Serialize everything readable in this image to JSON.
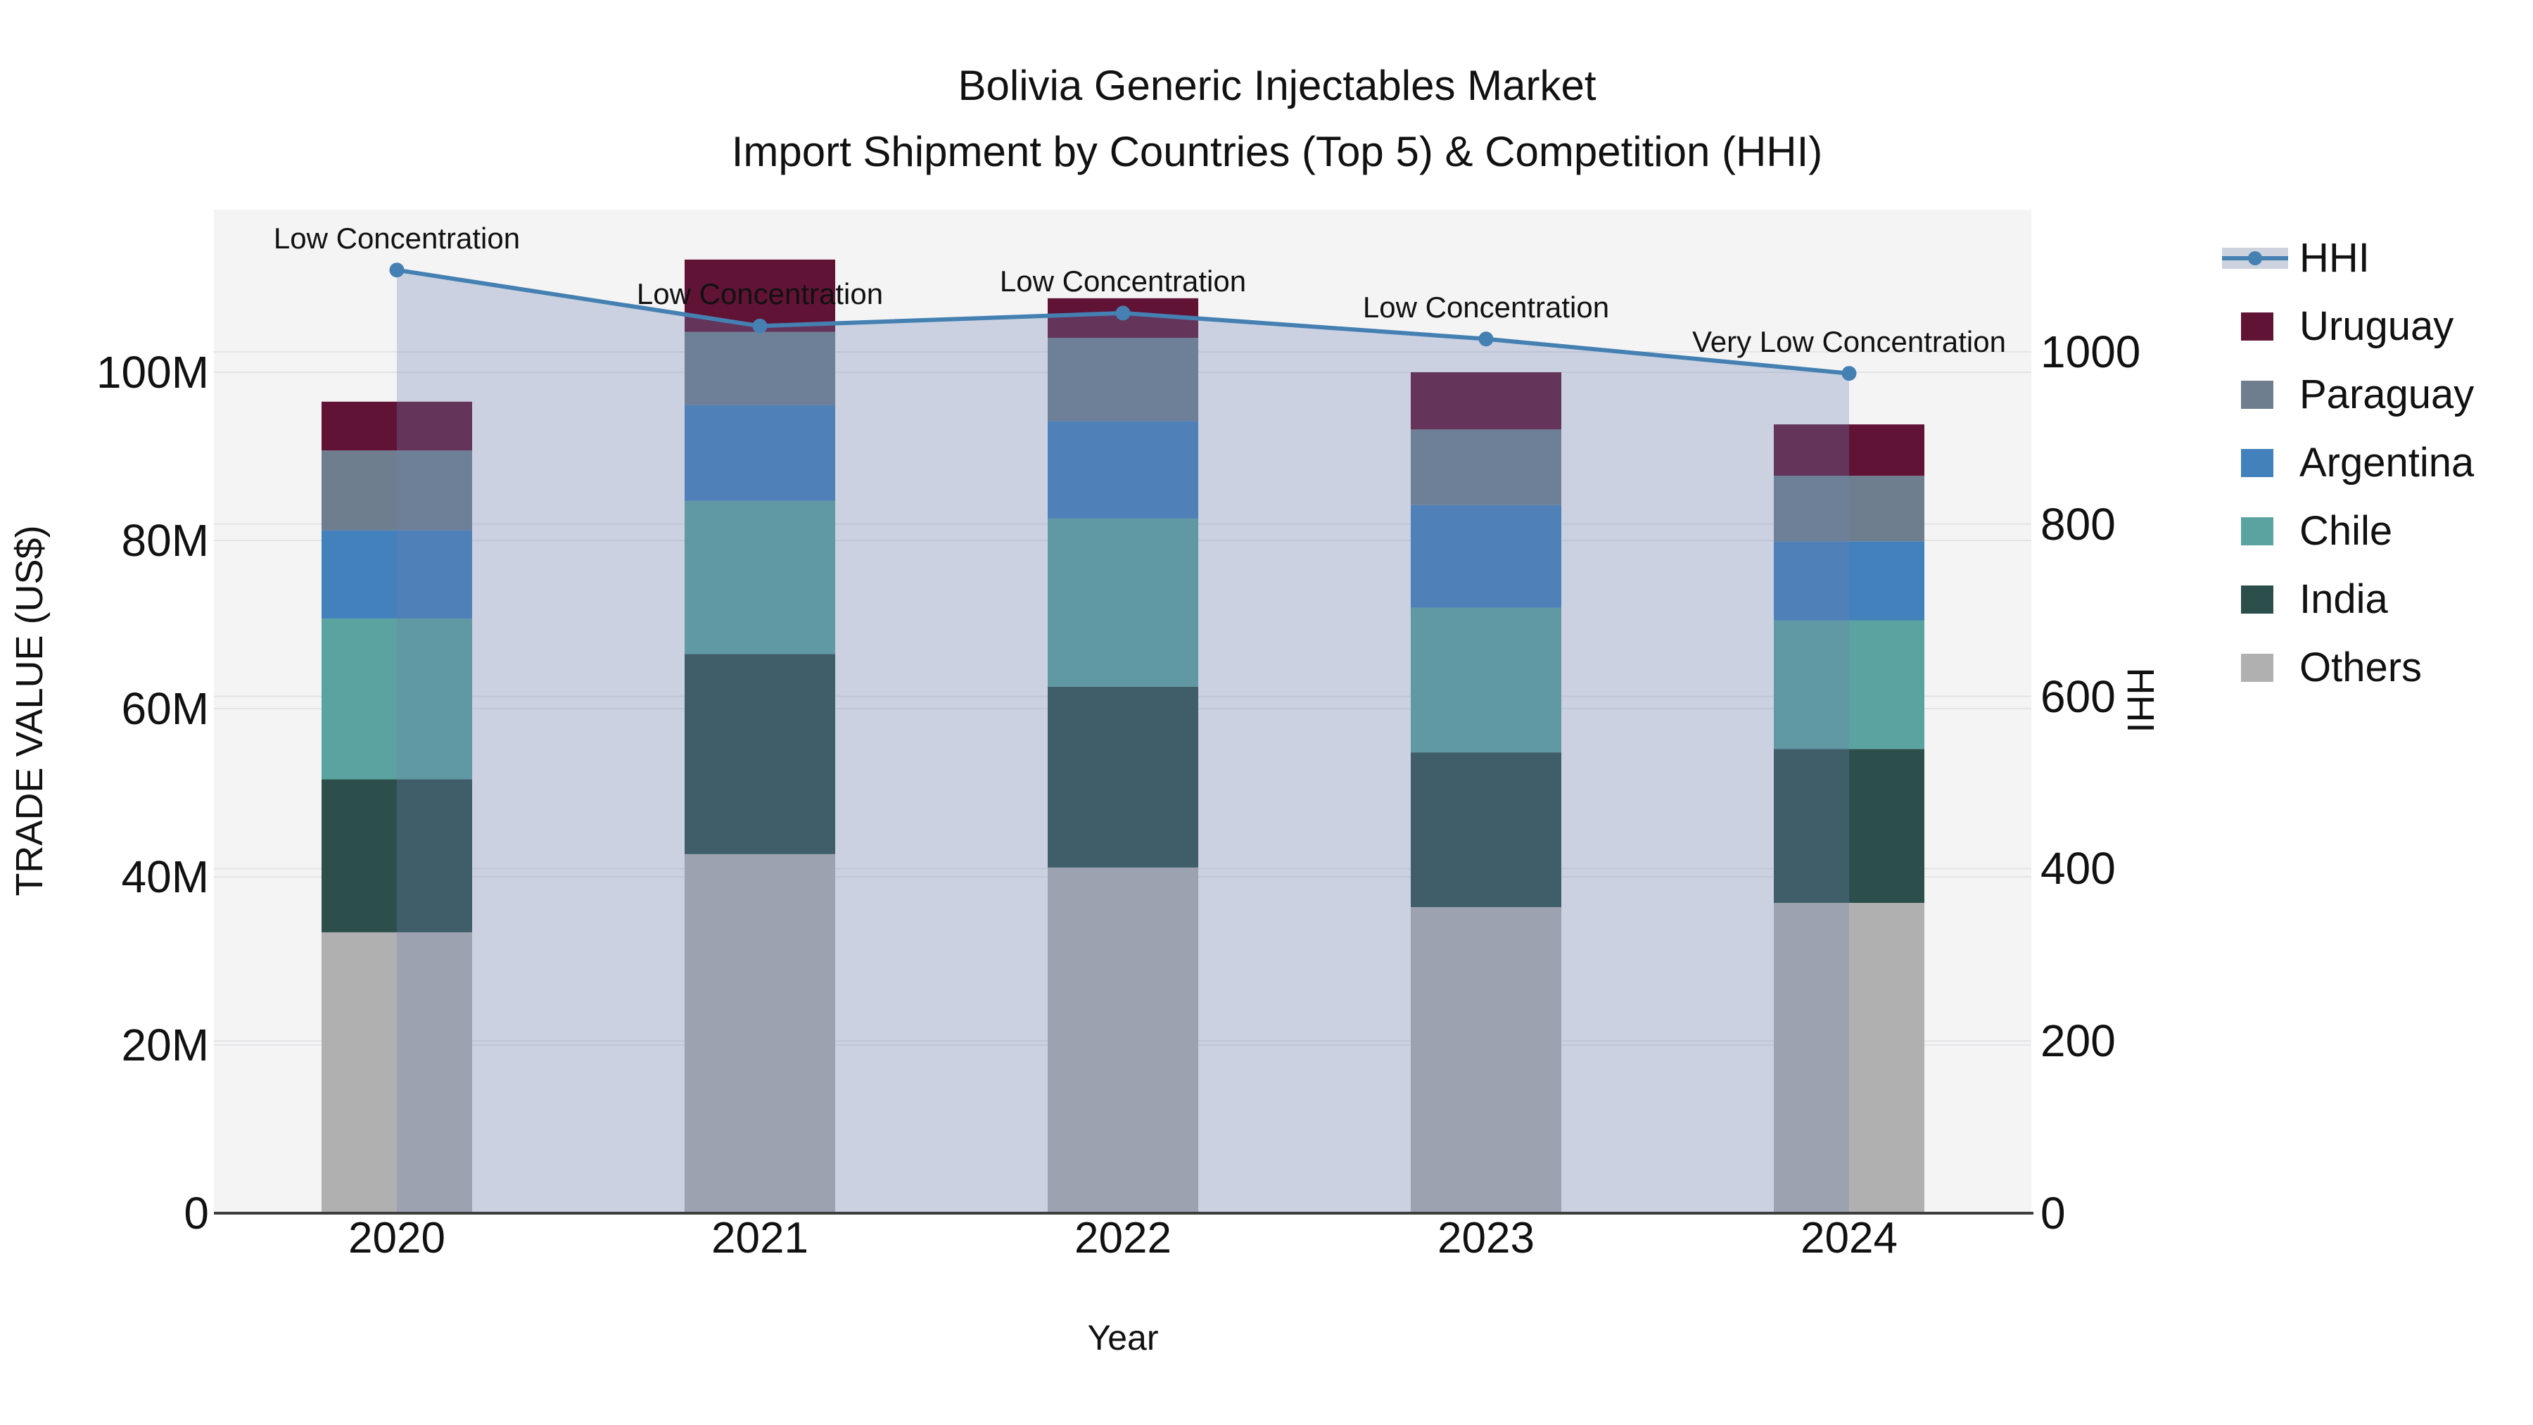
{
  "title": {
    "line1": "Bolivia Generic Injectables Market",
    "line2": "Import Shipment by Countries (Top 5) & Competition (HHI)"
  },
  "axes": {
    "x": {
      "title": "Year",
      "tick_labels": [
        "2020",
        "2021",
        "2022",
        "2023",
        "2024"
      ]
    },
    "y_left": {
      "title": "TRADE VALUE (US$)",
      "tick_labels": [
        "0",
        "20M",
        "40M",
        "60M",
        "80M",
        "100M"
      ],
      "tick_values": [
        0,
        20,
        40,
        60,
        80,
        100
      ],
      "range": [
        0,
        119
      ]
    },
    "y_right": {
      "title": "HHI",
      "tick_labels": [
        "0",
        "200",
        "400",
        "600",
        "800",
        "1000"
      ],
      "tick_values": [
        0,
        200,
        400,
        600,
        800,
        1000
      ],
      "range": [
        0,
        1165
      ]
    }
  },
  "legend": {
    "items": [
      {
        "label": "HHI",
        "type": "line",
        "color": "#4580b2"
      },
      {
        "label": "Uruguay",
        "type": "square",
        "color": "#611336"
      },
      {
        "label": "Paraguay",
        "type": "square",
        "color": "#6f7e8e"
      },
      {
        "label": "Argentina",
        "type": "square",
        "color": "#4381bc"
      },
      {
        "label": "Chile",
        "type": "square",
        "color": "#5ba3a0"
      },
      {
        "label": "India",
        "type": "square",
        "color": "#2c4f4b"
      },
      {
        "label": "Others",
        "type": "square",
        "color": "#b0b0b0"
      }
    ]
  },
  "annotations": [
    {
      "year": "2020",
      "text": "Low Concentration"
    },
    {
      "year": "2021",
      "text": "Low Concentration"
    },
    {
      "year": "2022",
      "text": "Low Concentration"
    },
    {
      "year": "2023",
      "text": "Low Concentration"
    },
    {
      "year": "2024",
      "text": "Very Low Concentration"
    }
  ],
  "chart_data": {
    "type": "bar+line",
    "title": "Bolivia Generic Injectables Market — Import Shipment by Countries (Top 5) & Competition (HHI)",
    "categories": [
      "2020",
      "2021",
      "2022",
      "2023",
      "2024"
    ],
    "bar_value_unit": "Million US$",
    "bar_stack_order_bottom_to_top": [
      "Others",
      "India",
      "Chile",
      "Argentina",
      "Paraguay",
      "Uruguay"
    ],
    "series": [
      {
        "name": "Others",
        "color": "#b0b0b0",
        "values": [
          33.4,
          42.7,
          41.1,
          36.4,
          36.9
        ]
      },
      {
        "name": "India",
        "color": "#2c4f4b",
        "values": [
          18.2,
          23.8,
          21.5,
          18.4,
          18.3
        ]
      },
      {
        "name": "Chile",
        "color": "#5ba3a0",
        "values": [
          19.1,
          18.2,
          20.0,
          17.2,
          15.3
        ]
      },
      {
        "name": "Argentina",
        "color": "#4381bc",
        "values": [
          10.5,
          11.4,
          11.6,
          12.2,
          9.4
        ]
      },
      {
        "name": "Paraguay",
        "color": "#6f7e8e",
        "values": [
          9.5,
          8.7,
          9.9,
          9.0,
          7.8
        ]
      },
      {
        "name": "Uruguay",
        "color": "#611336",
        "values": [
          5.8,
          8.6,
          4.7,
          6.8,
          6.1
        ]
      }
    ],
    "stack_totals": [
      96.5,
      113.4,
      108.8,
      100.0,
      93.8
    ],
    "line": {
      "name": "HHI",
      "axis": "right",
      "values": [
        1095,
        1030,
        1045,
        1015,
        975
      ],
      "color": "#4580b2",
      "area_fill": "rgba(110,130,175,0.30)",
      "marker": "circle"
    },
    "xlabel": "Year",
    "ylabel_left": "TRADE VALUE (US$)",
    "ylabel_right": "HHI",
    "grid": true,
    "legend_position": "right-top-outside"
  },
  "colors": {
    "plot_bg": "#f4f4f5",
    "page_bg": "#ffffff",
    "grid": "#e4e4e7",
    "axis_line": "#3d3d3d",
    "text": "#111111",
    "hhi_line": "#4580b2",
    "hhi_area": "rgba(110,130,175,0.30)"
  }
}
